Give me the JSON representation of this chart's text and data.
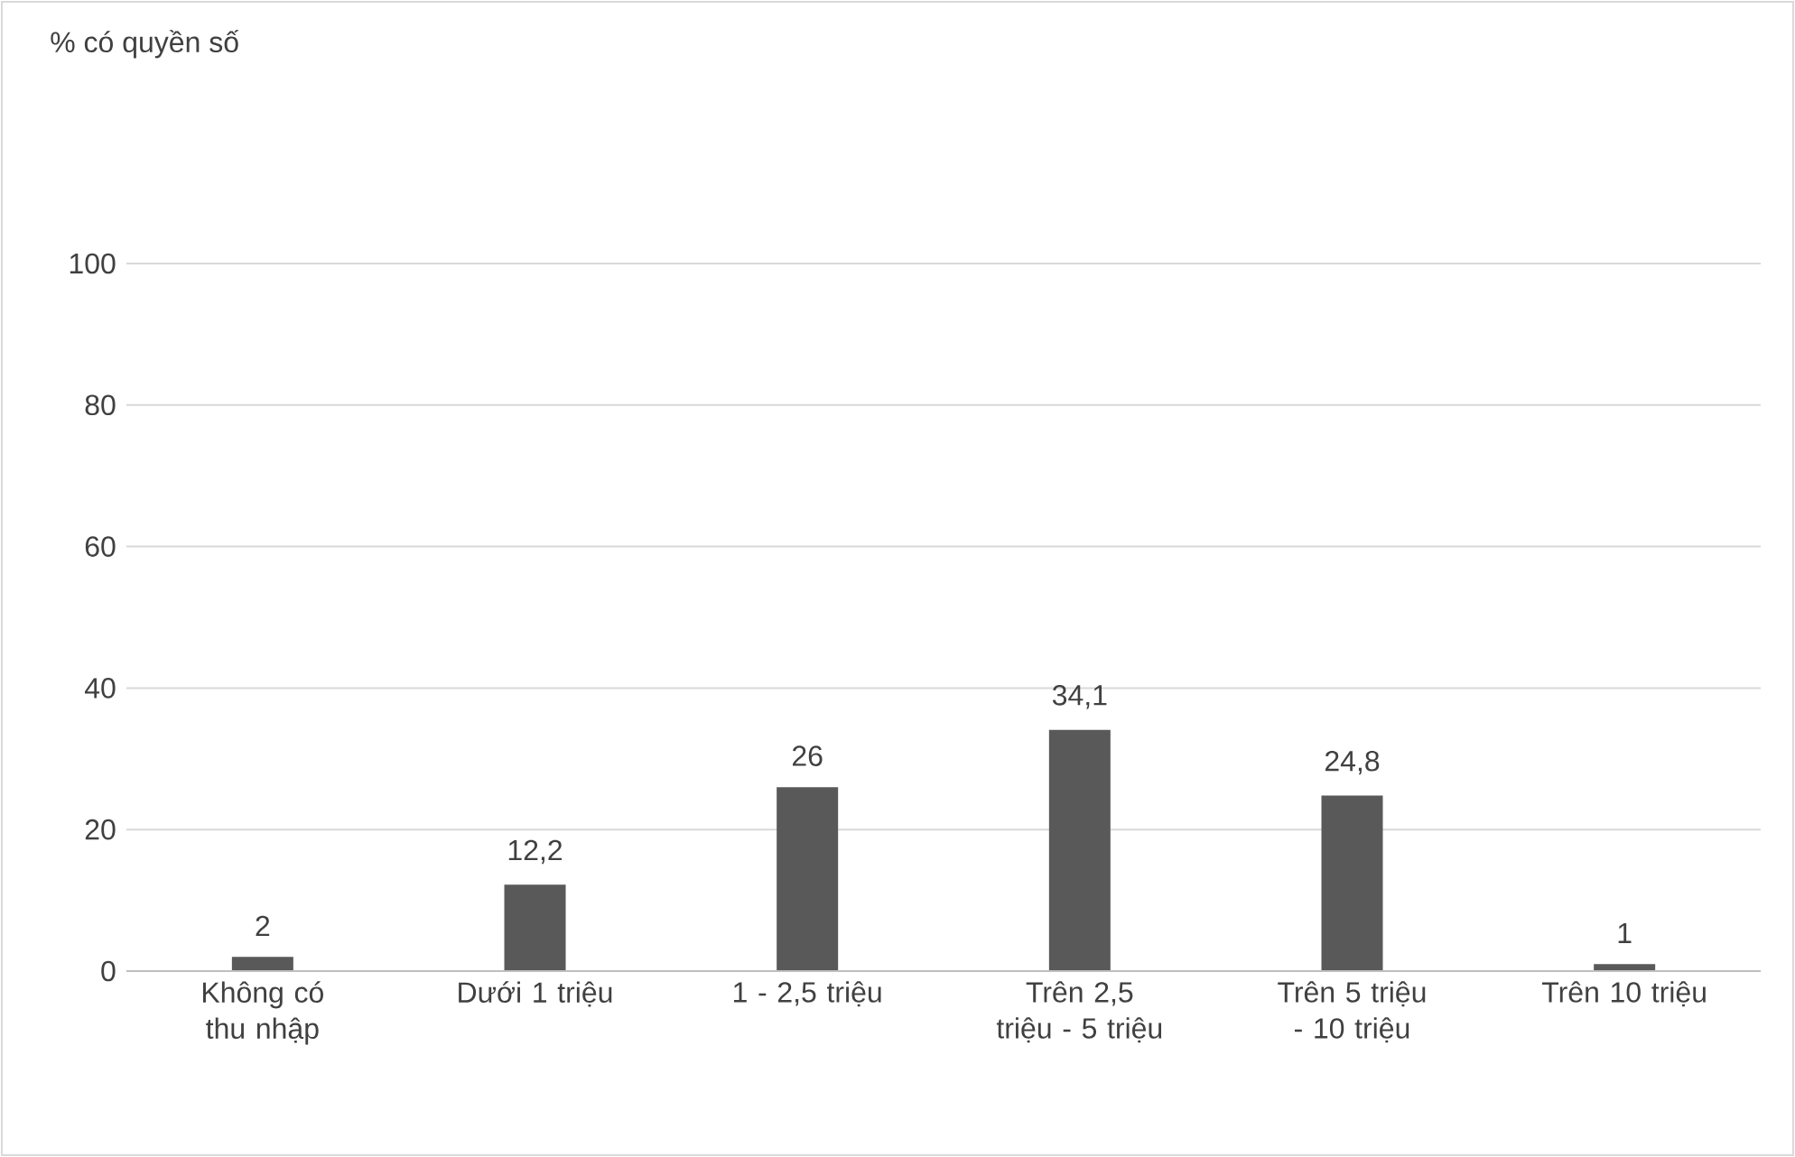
{
  "chart_data": {
    "type": "bar",
    "annotations": [
      "% có quyền số"
    ],
    "categories": [
      "Không có thu nhập",
      "Dưới 1 triệu",
      "1 - 2,5 triệu",
      "Trên 2,5 triệu - 5 triệu",
      "Trên 5 triệu - 10 triệu",
      "Trên 10 triệu"
    ],
    "values": [
      2,
      12.2,
      26,
      34.1,
      24.8,
      1
    ],
    "value_labels": [
      "2",
      "12,2",
      "26",
      "34,1",
      "24,8",
      "1"
    ],
    "color": "#595959",
    "ylim": [
      0,
      100
    ],
    "yticks": [
      0,
      20,
      40,
      60,
      80,
      100
    ],
    "grid": "y"
  }
}
